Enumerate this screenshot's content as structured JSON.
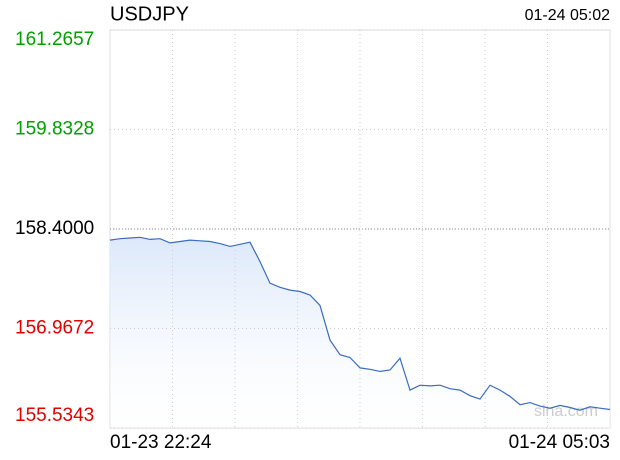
{
  "chart_data": {
    "type": "line",
    "title": "USDJPY",
    "subtitle": "01-24 05:02",
    "watermark": "sina.com",
    "categories": [
      "01-23 22:24",
      null,
      null,
      null,
      null,
      null,
      null,
      null,
      null,
      null,
      null,
      null,
      null,
      null,
      null,
      null,
      null,
      null,
      null,
      null,
      null,
      null,
      null,
      null,
      null,
      null,
      null,
      null,
      null,
      null,
      null,
      null,
      null,
      null,
      null,
      null,
      null,
      null,
      null,
      null,
      null,
      null,
      null,
      null,
      null,
      null,
      null,
      null,
      null,
      null,
      "01-24 05:03"
    ],
    "series": [
      {
        "name": "USDJPY",
        "color": "#3a6cc0",
        "values": [
          158.24,
          158.26,
          158.27,
          158.28,
          158.25,
          158.26,
          158.2,
          158.22,
          158.24,
          158.23,
          158.22,
          158.19,
          158.15,
          158.18,
          158.21,
          157.93,
          157.62,
          157.56,
          157.52,
          157.5,
          157.45,
          157.3,
          156.8,
          156.59,
          156.55,
          156.4,
          156.38,
          156.35,
          156.37,
          156.54,
          156.08,
          156.15,
          156.14,
          156.15,
          156.1,
          156.08,
          156.0,
          155.95,
          156.15,
          156.08,
          155.99,
          155.87,
          155.9,
          155.85,
          155.82,
          155.86,
          155.83,
          155.79,
          155.84,
          155.82,
          155.8
        ]
      }
    ],
    "ylim": [
      155.5343,
      161.2657
    ],
    "yticks": [
      155.5343,
      156.9672,
      {
        "value": 158.4,
        "label": "158.4000"
      },
      159.8328,
      161.2657
    ],
    "reference": 158.4,
    "up_color": "#00a000",
    "down_color": "#e00000",
    "grid": true
  }
}
